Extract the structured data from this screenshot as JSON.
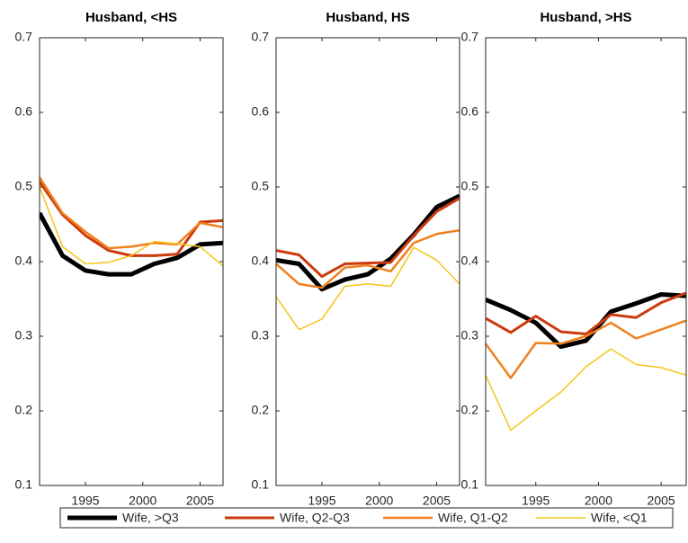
{
  "chart_data": [
    {
      "type": "line",
      "title": "Husband, <HS",
      "x": [
        1991,
        1993,
        1995,
        1997,
        1999,
        2001,
        2003,
        2005,
        2007
      ],
      "xlim": [
        1991,
        2007
      ],
      "xticks": [
        1995,
        2000,
        2005
      ],
      "ylim": [
        0.1,
        0.7
      ],
      "yticks": [
        0.1,
        0.2,
        0.3,
        0.4,
        0.5,
        0.6,
        0.7
      ],
      "series": [
        {
          "name": "Wife, >Q3",
          "color": "#000000",
          "line_width": 5,
          "values": [
            0.465,
            0.408,
            0.388,
            0.383,
            0.383,
            0.397,
            0.405,
            0.423,
            0.425
          ]
        },
        {
          "name": "Wife, Q2-Q3",
          "color": "#cc3a0c",
          "line_width": 3,
          "values": [
            0.507,
            0.463,
            0.435,
            0.415,
            0.408,
            0.408,
            0.41,
            0.453,
            0.455
          ]
        },
        {
          "name": "Wife, Q1-Q2",
          "color": "#f0801e",
          "line_width": 2.5,
          "values": [
            0.513,
            0.465,
            0.44,
            0.418,
            0.42,
            0.425,
            0.423,
            0.452,
            0.446
          ]
        },
        {
          "name": "Wife, <Q1",
          "color": "#f5c518",
          "line_width": 1.5,
          "values": [
            0.5,
            0.42,
            0.397,
            0.399,
            0.408,
            0.427,
            0.424,
            0.42,
            0.394
          ]
        }
      ]
    },
    {
      "type": "line",
      "title": "Husband, HS",
      "x": [
        1991,
        1993,
        1995,
        1997,
        1999,
        2001,
        2003,
        2005,
        2007
      ],
      "xlim": [
        1991,
        2007
      ],
      "xticks": [
        1995,
        2000,
        2005
      ],
      "ylim": [
        0.1,
        0.7
      ],
      "yticks": [
        0.1,
        0.2,
        0.3,
        0.4,
        0.5,
        0.6,
        0.7
      ],
      "series": [
        {
          "name": "Wife, >Q3",
          "color": "#000000",
          "line_width": 5,
          "values": [
            0.402,
            0.397,
            0.363,
            0.376,
            0.383,
            0.404,
            0.436,
            0.473,
            0.488
          ]
        },
        {
          "name": "Wife, Q2-Q3",
          "color": "#cc3a0c",
          "line_width": 3,
          "values": [
            0.415,
            0.409,
            0.38,
            0.397,
            0.398,
            0.399,
            0.435,
            0.467,
            0.485
          ]
        },
        {
          "name": "Wife, Q1-Q2",
          "color": "#f0801e",
          "line_width": 2.5,
          "values": [
            0.397,
            0.37,
            0.365,
            0.392,
            0.395,
            0.387,
            0.425,
            0.437,
            0.442
          ]
        },
        {
          "name": "Wife, <Q1",
          "color": "#f5c518",
          "line_width": 1.5,
          "values": [
            0.353,
            0.309,
            0.323,
            0.367,
            0.37,
            0.367,
            0.419,
            0.402,
            0.37
          ]
        }
      ]
    },
    {
      "type": "line",
      "title": "Husband, >HS",
      "x": [
        1991,
        1993,
        1995,
        1997,
        1999,
        2001,
        2003,
        2005,
        2007
      ],
      "xlim": [
        1991,
        2007
      ],
      "xticks": [
        1995,
        2000,
        2005
      ],
      "ylim": [
        0.1,
        0.7
      ],
      "yticks": [
        0.1,
        0.2,
        0.3,
        0.4,
        0.5,
        0.6,
        0.7
      ],
      "series": [
        {
          "name": "Wife, >Q3",
          "color": "#000000",
          "line_width": 5,
          "values": [
            0.349,
            0.335,
            0.318,
            0.286,
            0.294,
            0.333,
            0.344,
            0.356,
            0.354
          ]
        },
        {
          "name": "Wife, Q2-Q3",
          "color": "#cc3a0c",
          "line_width": 3,
          "values": [
            0.324,
            0.305,
            0.327,
            0.306,
            0.303,
            0.329,
            0.325,
            0.345,
            0.358
          ]
        },
        {
          "name": "Wife, Q1-Q2",
          "color": "#f0801e",
          "line_width": 2.5,
          "values": [
            0.29,
            0.244,
            0.291,
            0.29,
            0.3,
            0.318,
            0.297,
            0.309,
            0.321
          ]
        },
        {
          "name": "Wife, <Q1",
          "color": "#f5c518",
          "line_width": 1.5,
          "values": [
            0.248,
            0.174,
            0.2,
            0.225,
            0.259,
            0.283,
            0.262,
            0.258,
            0.248
          ]
        }
      ]
    }
  ]
}
